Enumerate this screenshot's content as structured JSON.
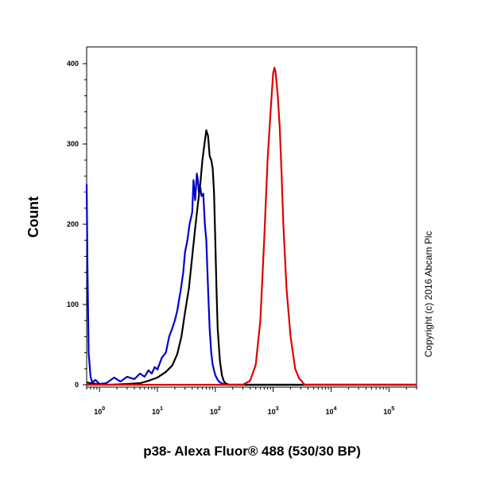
{
  "chart_data": {
    "type": "line",
    "title": "",
    "xlabel": "p38- Alexa Fluor® 488 (530/30 BP)",
    "ylabel": "Count",
    "x_scale": "log",
    "xlim": [
      0.6,
      300000
    ],
    "ylim": [
      0,
      410
    ],
    "x_ticks": [
      {
        "value": 1,
        "base": "10",
        "exp": "0"
      },
      {
        "value": 10,
        "base": "10",
        "exp": "1"
      },
      {
        "value": 100,
        "base": "10",
        "exp": "2"
      },
      {
        "value": 1000,
        "base": "10",
        "exp": "3"
      },
      {
        "value": 10000,
        "base": "10",
        "exp": "4"
      },
      {
        "value": 100000,
        "base": "10",
        "exp": "5"
      }
    ],
    "y_ticks": [
      0,
      100,
      200,
      300,
      400
    ],
    "grid": false,
    "legend": "none",
    "series": [
      {
        "color": "#0000cc",
        "x": [
          0.6,
          0.62,
          0.65,
          0.7,
          0.75,
          0.85,
          1.0,
          1.3,
          1.8,
          2.3,
          3.0,
          4.0,
          5.0,
          6.0,
          7.0,
          8.0,
          9.0,
          10.0,
          12.0,
          14.0,
          16.0,
          18.0,
          20.0,
          22.0,
          25.0,
          28.0,
          30.0,
          33.0,
          36.0,
          40.0,
          42.0,
          45.0,
          48.0,
          50.0,
          52.0,
          55.0,
          58.0,
          62.0,
          66.0,
          70.0,
          75.0,
          80.0,
          85.0,
          90.0,
          100.0,
          110.0,
          120.0,
          140.0,
          160.0,
          200.0,
          300000.0
        ],
        "y": [
          250,
          150,
          40,
          10,
          3,
          6,
          1,
          2,
          9,
          4,
          10,
          7,
          14,
          10,
          18,
          14,
          22,
          19,
          34,
          40,
          60,
          70,
          80,
          92,
          116,
          140,
          165,
          180,
          200,
          215,
          255,
          230,
          263,
          255,
          240,
          246,
          235,
          238,
          200,
          180,
          120,
          70,
          40,
          25,
          12,
          6,
          3,
          1,
          0,
          0,
          0
        ]
      },
      {
        "color": "#000000",
        "x": [
          0.6,
          0.7,
          0.9,
          1.5,
          3.0,
          5.0,
          7.0,
          10.0,
          14.0,
          18.0,
          22.0,
          26.0,
          30.0,
          35.0,
          40.0,
          45.0,
          50.0,
          55.0,
          60.0,
          65.0,
          70.0,
          75.0,
          80.0,
          85.0,
          90.0,
          95.0,
          100.0,
          105.0,
          110.0,
          120.0,
          130.0,
          140.0,
          150.0,
          170.0,
          200.0,
          300000.0
        ],
        "y": [
          3,
          2,
          1,
          0,
          1,
          2,
          5,
          9,
          16,
          24,
          38,
          60,
          90,
          120,
          160,
          195,
          225,
          250,
          280,
          300,
          317,
          310,
          285,
          280,
          270,
          240,
          180,
          120,
          70,
          30,
          12,
          5,
          2,
          0,
          0,
          0
        ]
      },
      {
        "color": "#dd0000",
        "x": [
          0.6,
          300.0,
          400.0,
          500.0,
          600.0,
          700.0,
          800.0,
          900.0,
          1000.0,
          1050.0,
          1100.0,
          1200.0,
          1300.0,
          1400.0,
          1500.0,
          1700.0,
          2000.0,
          2400.0,
          2800.0,
          3500.0,
          300000.0
        ],
        "y": [
          0,
          0,
          5,
          25,
          80,
          180,
          280,
          340,
          388,
          395,
          390,
          360,
          320,
          260,
          200,
          120,
          60,
          20,
          8,
          0,
          0
        ]
      }
    ],
    "annotations": [
      "Copyright (c) 2016 Abcam Plc"
    ]
  }
}
